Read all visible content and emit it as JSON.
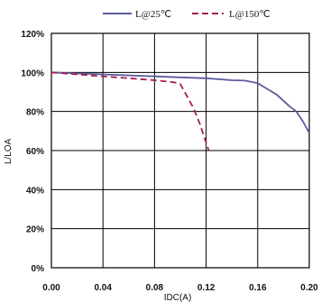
{
  "chart_data": {
    "type": "line",
    "xlabel": "IDC(A)",
    "ylabel": "L/LOA",
    "xlim": [
      0,
      0.2
    ],
    "ylim": [
      0,
      120
    ],
    "x_ticks": [
      "0.00",
      "0.04",
      "0.08",
      "0.12",
      "0.16",
      "0.20"
    ],
    "y_ticks": [
      "0%",
      "20%",
      "40%",
      "60%",
      "80%",
      "100%",
      "120%"
    ],
    "grid": true,
    "legend_position": "top",
    "series": [
      {
        "name": "L@25℃",
        "color": "#5a5a9e",
        "dash": "solid",
        "x": [
          0.0,
          0.02,
          0.04,
          0.06,
          0.08,
          0.1,
          0.12,
          0.13,
          0.14,
          0.15,
          0.155,
          0.16,
          0.165,
          0.17,
          0.175,
          0.18,
          0.185,
          0.19,
          0.195,
          0.2
        ],
        "y": [
          100,
          99.5,
          99,
          98.5,
          98,
          97.5,
          97,
          96.5,
          96,
          95.8,
          95.2,
          94.5,
          92.5,
          90.5,
          88.5,
          85.5,
          82.5,
          80,
          75,
          69
        ]
      },
      {
        "name": "L@150℃",
        "color": "#a3204d",
        "dash": "dashed",
        "x": [
          0.0,
          0.02,
          0.04,
          0.06,
          0.08,
          0.095,
          0.1,
          0.105,
          0.11,
          0.115,
          0.12,
          0.122
        ],
        "y": [
          100,
          99,
          98,
          97,
          96,
          95,
          94,
          88,
          82,
          74,
          64,
          60
        ]
      }
    ]
  }
}
